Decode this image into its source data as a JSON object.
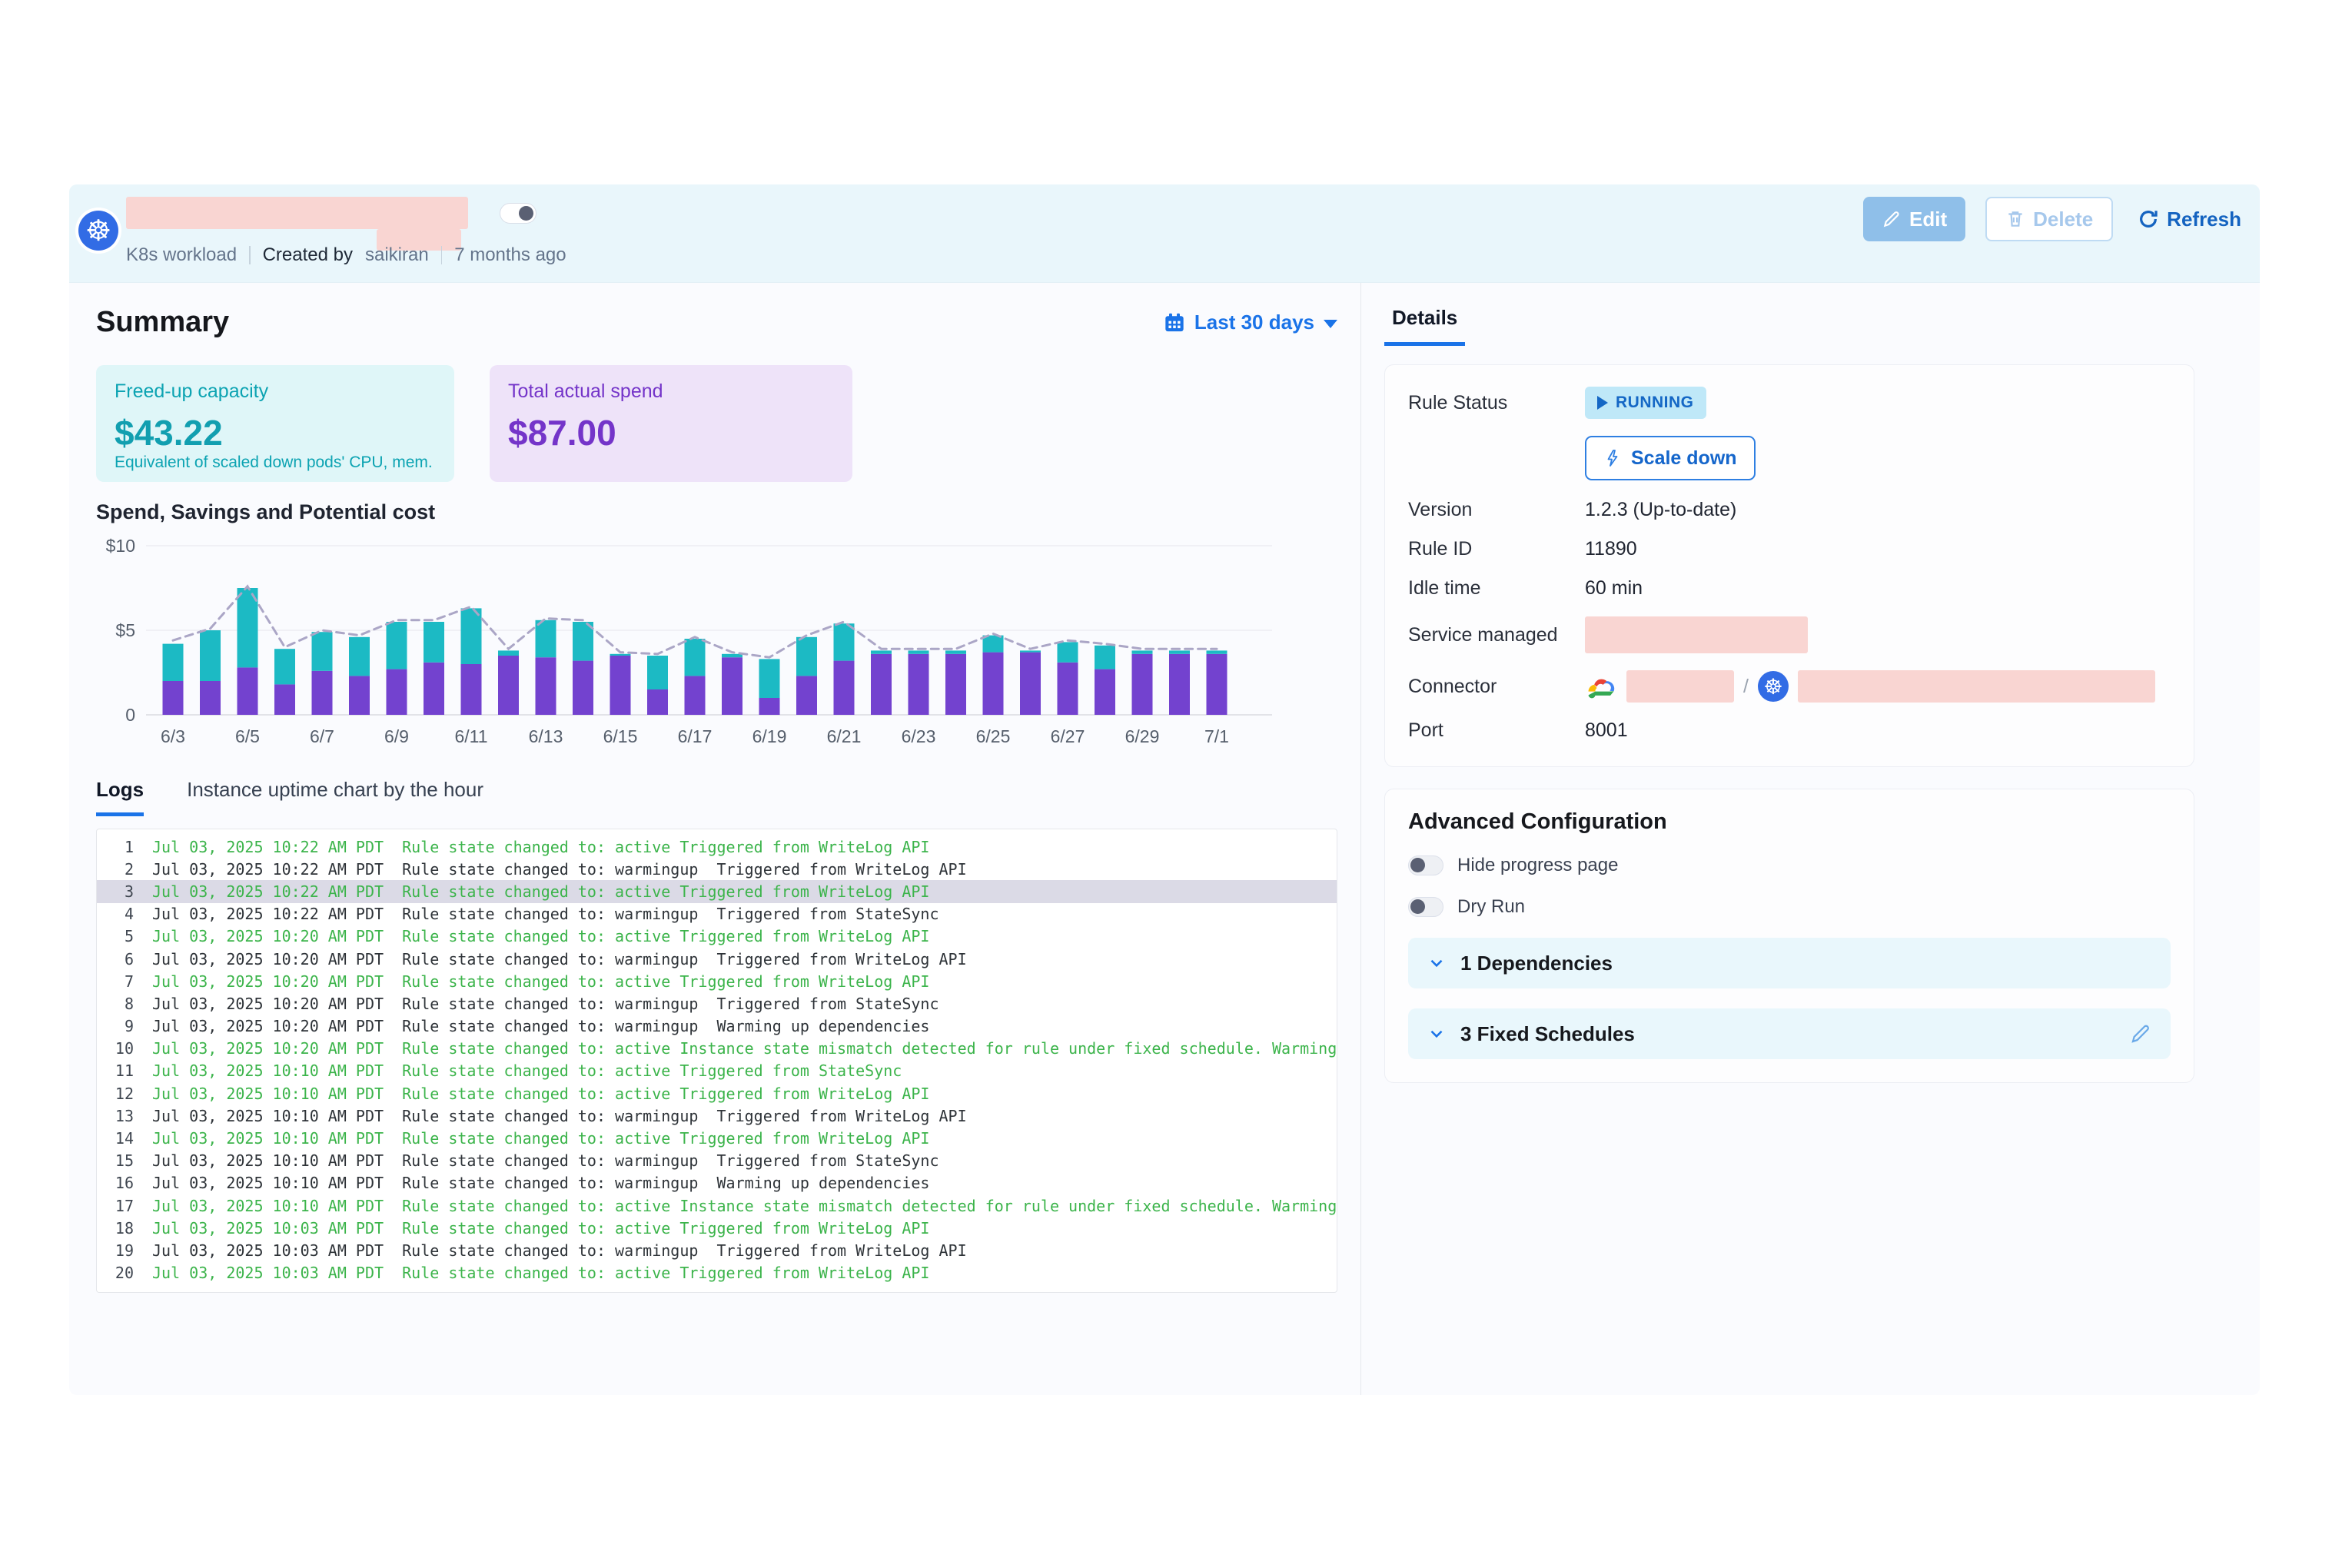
{
  "header": {
    "type_label": "K8s workload",
    "created_by_label": "Created by",
    "created_by_value": "saikiran",
    "age": "7 months ago",
    "edit_label": "Edit",
    "delete_label": "Delete",
    "refresh_label": "Refresh"
  },
  "summary": {
    "title": "Summary",
    "date_range": "Last 30 days",
    "freed": {
      "label": "Freed-up capacity",
      "value": "$43.22",
      "sub": "Equivalent of scaled down pods' CPU, mem."
    },
    "spend": {
      "label": "Total actual spend",
      "value": "$87.00"
    }
  },
  "chart_data": {
    "type": "bar",
    "stacked": true,
    "title": "Spend, Savings and Potential cost",
    "categories": [
      "6/3",
      "6/4",
      "6/5",
      "6/6",
      "6/7",
      "6/8",
      "6/9",
      "6/10",
      "6/11",
      "6/12",
      "6/13",
      "6/14",
      "6/15",
      "6/16",
      "6/17",
      "6/18",
      "6/19",
      "6/20",
      "6/21",
      "6/22",
      "6/23",
      "6/24",
      "6/25",
      "6/26",
      "6/27",
      "6/28",
      "6/29",
      "6/30",
      "7/1"
    ],
    "y_ticks": [
      "$10",
      "$5",
      "0"
    ],
    "ylim": [
      0,
      10
    ],
    "grid": true,
    "series": [
      {
        "name": "Spend",
        "color": "#7342CF",
        "values": [
          2.0,
          2.0,
          2.8,
          1.8,
          2.6,
          2.3,
          2.7,
          3.1,
          3.0,
          3.5,
          3.4,
          3.2,
          3.5,
          1.5,
          2.3,
          3.4,
          1.0,
          2.3,
          3.2,
          3.6,
          3.6,
          3.6,
          3.7,
          3.7,
          3.1,
          2.7,
          3.6,
          3.6,
          3.6
        ]
      },
      {
        "name": "Savings",
        "color": "#1CBAC4",
        "values": [
          2.2,
          3.0,
          4.7,
          2.1,
          2.3,
          2.3,
          2.8,
          2.4,
          3.3,
          0.3,
          2.2,
          2.3,
          0.1,
          2.0,
          2.2,
          0.2,
          2.3,
          2.3,
          2.2,
          0.2,
          0.2,
          0.2,
          1.0,
          0.1,
          1.2,
          1.4,
          0.2,
          0.2,
          0.2
        ]
      },
      {
        "name": "Potential cost",
        "type": "dashed-line",
        "color": "#ABA6C6",
        "values": [
          4.4,
          5.1,
          7.6,
          4.0,
          5.0,
          4.7,
          5.6,
          5.6,
          6.4,
          3.9,
          5.7,
          5.6,
          3.7,
          3.6,
          4.6,
          3.7,
          3.4,
          4.7,
          5.5,
          3.9,
          3.9,
          3.9,
          4.8,
          3.9,
          4.4,
          4.2,
          3.9,
          3.9,
          3.9
        ]
      }
    ]
  },
  "tabs": {
    "logs": "Logs",
    "uptime": "Instance uptime chart by the hour"
  },
  "logs": {
    "rows": [
      {
        "n": 1,
        "time": "Jul 03, 2025 10:22 AM PDT",
        "msg": "Rule state changed to: active Triggered from WriteLog API",
        "color": "green",
        "highlighted": false
      },
      {
        "n": 2,
        "time": "Jul 03, 2025 10:22 AM PDT",
        "msg": "Rule state changed to: warmingup  Triggered from WriteLog API",
        "color": "black",
        "highlighted": false
      },
      {
        "n": 3,
        "time": "Jul 03, 2025 10:22 AM PDT",
        "msg": "Rule state changed to: active Triggered from WriteLog API",
        "color": "green",
        "highlighted": true
      },
      {
        "n": 4,
        "time": "Jul 03, 2025 10:22 AM PDT",
        "msg": "Rule state changed to: warmingup  Triggered from StateSync",
        "color": "black",
        "highlighted": false
      },
      {
        "n": 5,
        "time": "Jul 03, 2025 10:20 AM PDT",
        "msg": "Rule state changed to: active Triggered from WriteLog API",
        "color": "green",
        "highlighted": false
      },
      {
        "n": 6,
        "time": "Jul 03, 2025 10:20 AM PDT",
        "msg": "Rule state changed to: warmingup  Triggered from WriteLog API",
        "color": "black",
        "highlighted": false
      },
      {
        "n": 7,
        "time": "Jul 03, 2025 10:20 AM PDT",
        "msg": "Rule state changed to: active Triggered from WriteLog API",
        "color": "green",
        "highlighted": false
      },
      {
        "n": 8,
        "time": "Jul 03, 2025 10:20 AM PDT",
        "msg": "Rule state changed to: warmingup  Triggered from StateSync",
        "color": "black",
        "highlighted": false
      },
      {
        "n": 9,
        "time": "Jul 03, 2025 10:20 AM PDT",
        "msg": "Rule state changed to: warmingup  Warming up dependencies",
        "color": "black",
        "highlighted": false
      },
      {
        "n": 10,
        "time": "Jul 03, 2025 10:20 AM PDT",
        "msg": "Rule state changed to: active Instance state mismatch detected for rule under fixed schedule. Warming up",
        "color": "green",
        "highlighted": false
      },
      {
        "n": 11,
        "time": "Jul 03, 2025 10:10 AM PDT",
        "msg": "Rule state changed to: active Triggered from StateSync",
        "color": "green",
        "highlighted": false
      },
      {
        "n": 12,
        "time": "Jul 03, 2025 10:10 AM PDT",
        "msg": "Rule state changed to: active Triggered from WriteLog API",
        "color": "green",
        "highlighted": false
      },
      {
        "n": 13,
        "time": "Jul 03, 2025 10:10 AM PDT",
        "msg": "Rule state changed to: warmingup  Triggered from WriteLog API",
        "color": "black",
        "highlighted": false
      },
      {
        "n": 14,
        "time": "Jul 03, 2025 10:10 AM PDT",
        "msg": "Rule state changed to: active Triggered from WriteLog API",
        "color": "green",
        "highlighted": false
      },
      {
        "n": 15,
        "time": "Jul 03, 2025 10:10 AM PDT",
        "msg": "Rule state changed to: warmingup  Triggered from StateSync",
        "color": "black",
        "highlighted": false
      },
      {
        "n": 16,
        "time": "Jul 03, 2025 10:10 AM PDT",
        "msg": "Rule state changed to: warmingup  Warming up dependencies",
        "color": "black",
        "highlighted": false
      },
      {
        "n": 17,
        "time": "Jul 03, 2025 10:10 AM PDT",
        "msg": "Rule state changed to: active Instance state mismatch detected for rule under fixed schedule. Warming up",
        "color": "green",
        "highlighted": false
      },
      {
        "n": 18,
        "time": "Jul 03, 2025 10:03 AM PDT",
        "msg": "Rule state changed to: active Triggered from WriteLog API",
        "color": "green",
        "highlighted": false
      },
      {
        "n": 19,
        "time": "Jul 03, 2025 10:03 AM PDT",
        "msg": "Rule state changed to: warmingup  Triggered from WriteLog API",
        "color": "black",
        "highlighted": false
      },
      {
        "n": 20,
        "time": "Jul 03, 2025 10:03 AM PDT",
        "msg": "Rule state changed to: active Triggered from WriteLog API",
        "color": "green",
        "highlighted": false
      }
    ]
  },
  "details": {
    "tab": "Details",
    "rule_status_label": "Rule Status",
    "running_badge": "RUNNING",
    "scale_down_label": "Scale down",
    "version_label": "Version",
    "version_value": "1.2.3 (Up-to-date)",
    "rule_id_label": "Rule ID",
    "rule_id_value": "11890",
    "idle_label": "Idle time",
    "idle_value": "60 min",
    "service_label": "Service managed",
    "connector_label": "Connector",
    "connector_separator": "/",
    "port_label": "Port",
    "port_value": "8001"
  },
  "advanced": {
    "title": "Advanced Configuration",
    "toggle_hide_progress": "Hide progress page",
    "toggle_dry_run": "Dry Run",
    "dependencies": "1 Dependencies",
    "schedules": "3 Fixed Schedules"
  },
  "colors": {
    "accent_blue": "#1A73E8",
    "teal": "#1CBAC4",
    "purple": "#7342CF",
    "dashed_line": "#ABA6C6",
    "log_green": "#3CB44B",
    "redaction_pink": "#F9D5D2",
    "header_band": "#E9F6FB",
    "running_badge_bg": "#BFE8F8"
  }
}
